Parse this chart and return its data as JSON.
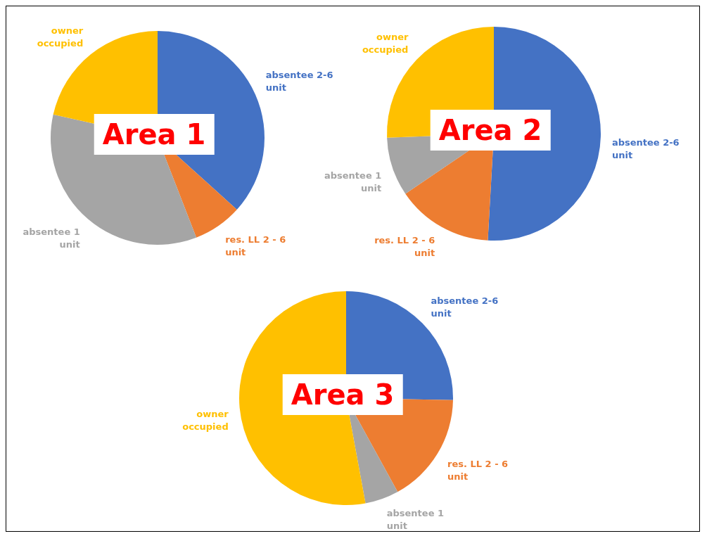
{
  "chart_data": [
    {
      "type": "pie",
      "title": "Area 1",
      "categories": [
        "absentee 2-6 unit",
        "res. LL 2 - 6 unit",
        "absentee 1 unit",
        "owner occupied"
      ],
      "values": [
        36.7,
        7.4,
        34.4,
        21.5
      ],
      "colors": [
        "#4472c4",
        "#ed7d31",
        "#a5a5a5",
        "#ffc000"
      ]
    },
    {
      "type": "pie",
      "title": "Area 2",
      "categories": [
        "absentee 2-6 unit",
        "res. LL 2 - 6 unit",
        "absentee 1 unit",
        "owner occupied"
      ],
      "values": [
        50.9,
        14.6,
        8.9,
        25.6
      ],
      "colors": [
        "#4472c4",
        "#ed7d31",
        "#a5a5a5",
        "#ffc000"
      ]
    },
    {
      "type": "pie",
      "title": "Area 3",
      "categories": [
        "absentee 2-6 unit",
        "res. LL 2 - 6 unit",
        "absentee 1 unit",
        "owner occupied"
      ],
      "values": [
        25.3,
        16.7,
        5.1,
        52.9
      ],
      "colors": [
        "#4472c4",
        "#ed7d31",
        "#a5a5a5",
        "#ffc000"
      ]
    }
  ]
}
